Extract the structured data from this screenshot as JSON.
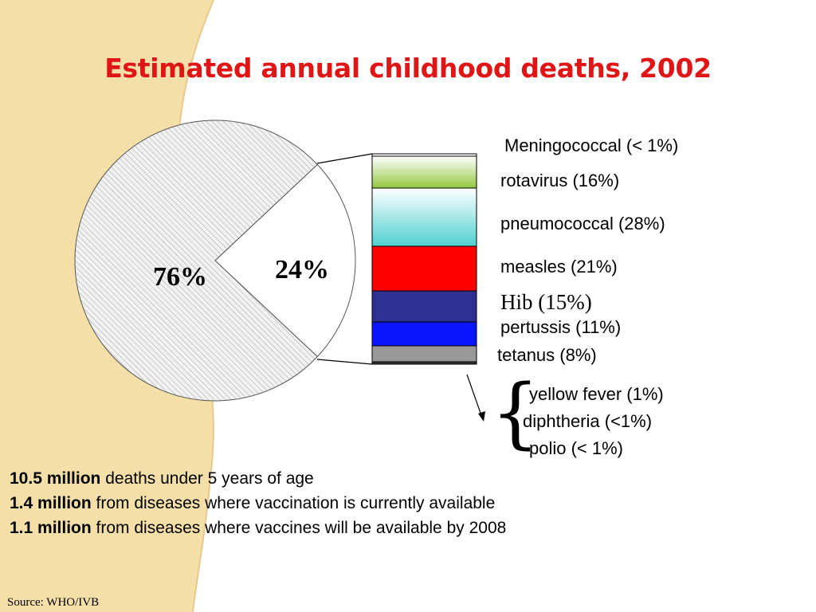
{
  "title": "Estimated annual childhood deaths, 2002",
  "colors": {
    "title": "#e01515",
    "background_band": "#f5dfa8",
    "rotavirus": "#94c842",
    "pneumococcal": "#4fd0d0",
    "measles": "#ff0000",
    "hib": "#2e3192",
    "pertussis": "#0a14ff",
    "tetanus": "#999999",
    "other": "#333333"
  },
  "chart_data": [
    {
      "type": "pie",
      "slices": [
        {
          "label": "76%",
          "value": 76
        },
        {
          "label": "24%",
          "value": 24
        }
      ]
    },
    {
      "type": "bar",
      "stacked": true,
      "categories": [
        "Meningococcal",
        "rotavirus",
        "pneumococcal",
        "measles",
        "Hib",
        "pertussis",
        "tetanus",
        "yellow fever",
        "diphtheria",
        "polio"
      ],
      "values": [
        0.5,
        16,
        28,
        21,
        15,
        11,
        8,
        1,
        0.5,
        0.5
      ],
      "labels": [
        "Meningococcal  (< 1%)",
        "rotavirus (16%)",
        "pneumococcal (28%)",
        "measles (21%)",
        "Hib (15%)",
        "pertussis (11%)",
        "tetanus (8%)",
        "yellow fever (1%)",
        "diphtheria (<1%)",
        "polio (< 1%)"
      ]
    }
  ],
  "facts": [
    {
      "bold": "10.5 million",
      "text": " deaths under 5 years of age"
    },
    {
      "bold": "1.4 million",
      "text": "  from diseases where vaccination is currently available"
    },
    {
      "bold": "1.1 million",
      "text": " from diseases where vaccines will be available by 2008"
    }
  ],
  "brace": "{",
  "source": "Source: WHO/IVB"
}
